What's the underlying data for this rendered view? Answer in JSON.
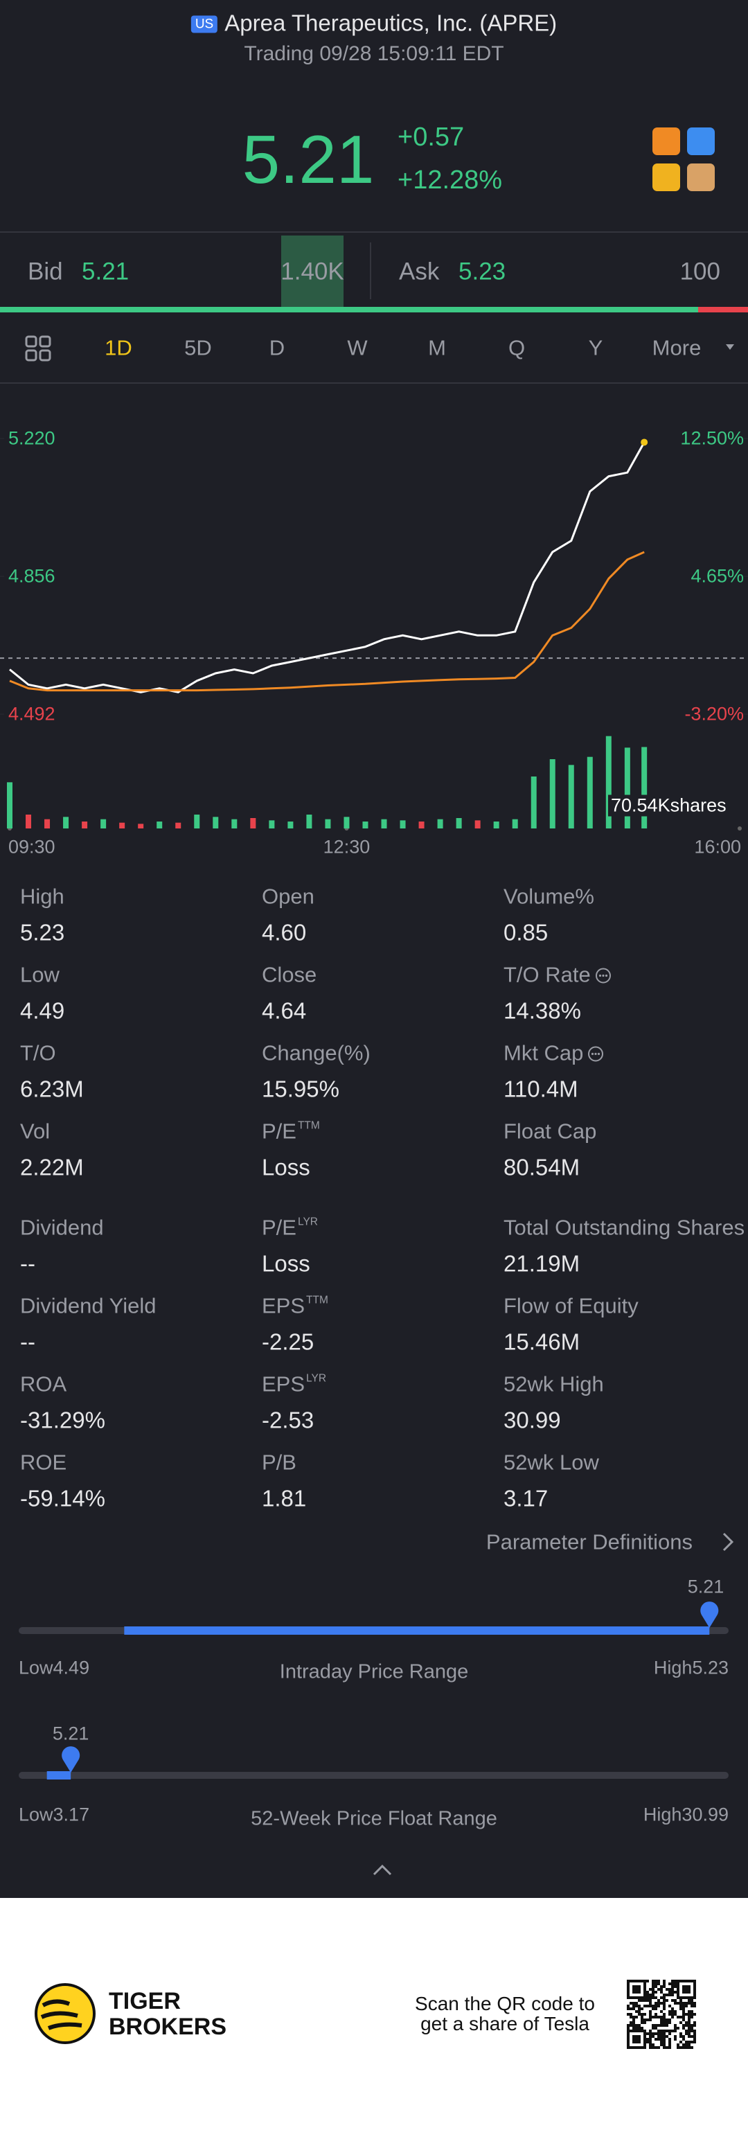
{
  "header": {
    "market_badge": "US",
    "title": "Aprea Therapeutics, Inc. (APRE)",
    "subtitle": "Trading 09/28 15:09:11 EDT"
  },
  "quote": {
    "price": "5.21",
    "change": "+0.57",
    "change_pct": "+12.28%"
  },
  "order_book": {
    "bid_label": "Bid",
    "bid": "5.21",
    "bid_size": {
      "value": 1400,
      "label": "1.40K"
    },
    "ask_label": "Ask",
    "ask": "5.23",
    "ask_size": 100
  },
  "tabs": [
    "1D",
    "5D",
    "D",
    "W",
    "M",
    "Q",
    "Y",
    "More"
  ],
  "chart_data": {
    "type": "line",
    "x": [
      "09:30",
      "09:40",
      "09:50",
      "10:00",
      "10:10",
      "10:20",
      "10:30",
      "10:40",
      "10:50",
      "11:00",
      "11:10",
      "11:20",
      "11:30",
      "11:40",
      "11:50",
      "12:00",
      "12:10",
      "12:20",
      "12:30",
      "12:40",
      "12:50",
      "13:00",
      "13:10",
      "13:20",
      "13:30",
      "13:40",
      "13:50",
      "14:00",
      "14:10",
      "14:20",
      "14:30",
      "14:40",
      "14:50",
      "15:00",
      "15:09"
    ],
    "series": [
      {
        "color": "#ffffff",
        "values": [
          4.61,
          4.57,
          4.56,
          4.57,
          4.56,
          4.57,
          4.56,
          4.55,
          4.56,
          4.55,
          4.58,
          4.6,
          4.61,
          4.6,
          4.62,
          4.63,
          4.64,
          4.65,
          4.66,
          4.67,
          4.69,
          4.7,
          4.69,
          4.7,
          4.71,
          4.7,
          4.7,
          4.71,
          4.84,
          4.92,
          4.95,
          5.08,
          5.12,
          5.13,
          5.21
        ]
      },
      {
        "color": "#f08a24",
        "values": [
          4.58,
          4.56,
          4.555,
          4.555,
          4.555,
          4.555,
          4.555,
          4.555,
          4.555,
          4.555,
          4.555,
          4.556,
          4.557,
          4.558,
          4.56,
          4.562,
          4.565,
          4.568,
          4.57,
          4.572,
          4.575,
          4.578,
          4.58,
          4.582,
          4.584,
          4.585,
          4.586,
          4.588,
          4.63,
          4.7,
          4.72,
          4.77,
          4.85,
          4.9,
          4.92
        ]
      }
    ],
    "ylim": [
      4.492,
      5.22
    ],
    "yticks": [
      {
        "value": 5.22,
        "label": "5.220"
      },
      {
        "value": 4.856,
        "label": "4.856"
      },
      {
        "value": 4.492,
        "label": "4.492"
      }
    ],
    "y2lim": [
      -3.2,
      12.5
    ],
    "y2ticks": [
      {
        "value": 12.5,
        "label": "12.50%"
      },
      {
        "value": 4.65,
        "label": "4.65%"
      },
      {
        "value": -3.2,
        "label": "-3.20%"
      }
    ],
    "xticks": [
      "09:30",
      "12:30",
      "16:00"
    ],
    "volume": {
      "values": [
        40,
        12,
        8,
        10,
        6,
        8,
        5,
        4,
        6,
        5,
        12,
        10,
        8,
        9,
        7,
        6,
        12,
        8,
        10,
        6,
        8,
        7,
        6,
        8,
        9,
        7,
        6,
        8,
        45,
        60,
        55,
        62,
        80,
        70,
        70.54
      ],
      "ylim": [
        0,
        90
      ],
      "label": "70.54Kshares"
    }
  },
  "stats": [
    [
      {
        "label": "High",
        "value": "5.23"
      },
      {
        "label": "Open",
        "value": "4.60"
      },
      {
        "label": "Volume%",
        "value": "0.85"
      }
    ],
    [
      {
        "label": "Low",
        "value": "4.49"
      },
      {
        "label": "Close",
        "value": "4.64"
      },
      {
        "label": "T/O Rate",
        "value": "14.38%",
        "info": true
      }
    ],
    [
      {
        "label": "T/O",
        "value": "6.23M"
      },
      {
        "label": "Change(%)",
        "value": "15.95%"
      },
      {
        "label": "Mkt Cap",
        "value": "110.4M",
        "info": true
      }
    ],
    [
      {
        "label": "Vol",
        "value": "2.22M"
      },
      {
        "label": "P/E",
        "sup": "TTM",
        "value": "Loss"
      },
      {
        "label": "Float Cap",
        "value": "80.54M"
      }
    ],
    [
      {
        "label": "Dividend",
        "value": "--"
      },
      {
        "label": "P/E",
        "sup": "LYR",
        "value": "Loss"
      },
      {
        "label": "Total Outstanding Shares",
        "value": "21.19M"
      }
    ],
    [
      {
        "label": "Dividend Yield",
        "value": "--"
      },
      {
        "label": "EPS",
        "sup": "TTM",
        "value": "-2.25"
      },
      {
        "label": "Flow of Equity",
        "value": "15.46M"
      }
    ],
    [
      {
        "label": "ROA",
        "value": "-31.29%"
      },
      {
        "label": "EPS",
        "sup": "LYR",
        "value": "-2.53"
      },
      {
        "label": "52wk High",
        "value": "30.99"
      }
    ],
    [
      {
        "label": "ROE",
        "value": "-59.14%"
      },
      {
        "label": "P/B",
        "value": "1.81"
      },
      {
        "label": "52wk Low",
        "value": "3.17"
      }
    ]
  ],
  "param_link": "Parameter Definitions",
  "ranges": [
    {
      "current": 5.21,
      "low_label": "Low",
      "low": 4.49,
      "high_label": "High",
      "high": 5.23,
      "caption": "Intraday Price Range"
    },
    {
      "current": 5.21,
      "low_label": "Low",
      "low": 3.17,
      "high_label": "High",
      "high": 30.99,
      "caption": "52-Week Price Float Range"
    }
  ],
  "footer": {
    "brand": [
      "TIGER",
      "BROKERS"
    ],
    "qr_text": [
      "Scan the QR code to",
      "get a share of Tesla"
    ]
  }
}
